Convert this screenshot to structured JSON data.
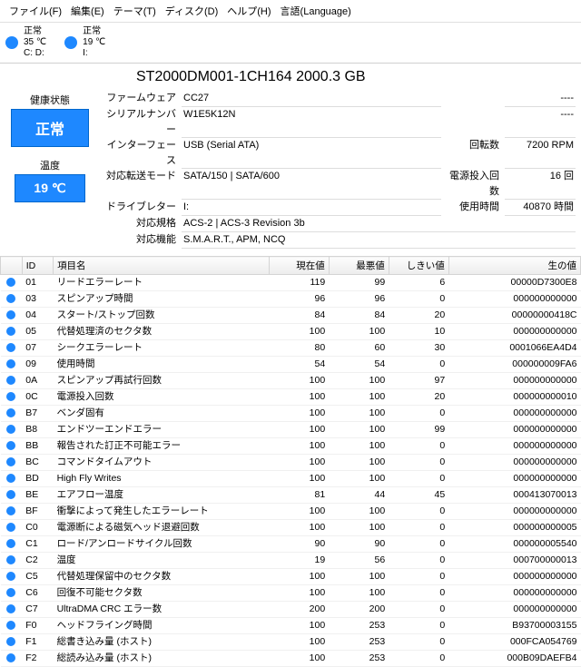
{
  "colors": {
    "accent": "#1e88ff",
    "border": "#d4d4d4",
    "grid": "#f0f0f0"
  },
  "menu": {
    "file": "ファイル(F)",
    "edit": "編集(E)",
    "theme": "テーマ(T)",
    "disk": "ディスク(D)",
    "help": "ヘルプ(H)",
    "lang": "言語(Language)"
  },
  "drives": [
    {
      "status": "正常",
      "temp": "35 ℃",
      "letter": "C: D:"
    },
    {
      "status": "正常",
      "temp": "19 ℃",
      "letter": "I:"
    }
  ],
  "model": "ST2000DM001-1CH164 2000.3 GB",
  "left": {
    "health_label": "健康状態",
    "health": "正常",
    "temp_label": "温度",
    "temp": "19 ℃"
  },
  "info": {
    "rows": [
      {
        "l1": "ファームウェア",
        "v1": "CC27",
        "l2": "",
        "v2": "----"
      },
      {
        "l1": "シリアルナンバー",
        "v1": "W1E5K12N",
        "l2": "",
        "v2": "----"
      },
      {
        "l1": "インターフェース",
        "v1": "USB (Serial ATA)",
        "l2": "回転数",
        "v2": "7200 RPM"
      },
      {
        "l1": "対応転送モード",
        "v1": "SATA/150 | SATA/600",
        "l2": "電源投入回数",
        "v2": "16 回"
      },
      {
        "l1": "ドライブレター",
        "v1": "I:",
        "l2": "使用時間",
        "v2": "40870 時間"
      },
      {
        "l1": "対応規格",
        "v1": "ACS-2 | ACS-3 Revision 3b",
        "l2": "",
        "v2": ""
      },
      {
        "l1": "対応機能",
        "v1": "S.M.A.R.T., APM, NCQ",
        "l2": "",
        "v2": ""
      }
    ]
  },
  "table": {
    "headers": {
      "id": "ID",
      "name": "項目名",
      "cur": "現在値",
      "worst": "最悪値",
      "thr": "しきい値",
      "raw": "生の値"
    },
    "rows": [
      {
        "id": "01",
        "name": "リードエラーレート",
        "cur": "119",
        "worst": "99",
        "thr": "6",
        "raw": "00000D7300E8"
      },
      {
        "id": "03",
        "name": "スピンアップ時間",
        "cur": "96",
        "worst": "96",
        "thr": "0",
        "raw": "000000000000"
      },
      {
        "id": "04",
        "name": "スタート/ストップ回数",
        "cur": "84",
        "worst": "84",
        "thr": "20",
        "raw": "00000000418C"
      },
      {
        "id": "05",
        "name": "代替処理済のセクタ数",
        "cur": "100",
        "worst": "100",
        "thr": "10",
        "raw": "000000000000"
      },
      {
        "id": "07",
        "name": "シークエラーレート",
        "cur": "80",
        "worst": "60",
        "thr": "30",
        "raw": "0001066EA4D4"
      },
      {
        "id": "09",
        "name": "使用時間",
        "cur": "54",
        "worst": "54",
        "thr": "0",
        "raw": "000000009FA6"
      },
      {
        "id": "0A",
        "name": "スピンアップ再試行回数",
        "cur": "100",
        "worst": "100",
        "thr": "97",
        "raw": "000000000000"
      },
      {
        "id": "0C",
        "name": "電源投入回数",
        "cur": "100",
        "worst": "100",
        "thr": "20",
        "raw": "000000000010"
      },
      {
        "id": "B7",
        "name": "ベンダ固有",
        "cur": "100",
        "worst": "100",
        "thr": "0",
        "raw": "000000000000"
      },
      {
        "id": "B8",
        "name": "エンドツーエンドエラー",
        "cur": "100",
        "worst": "100",
        "thr": "99",
        "raw": "000000000000"
      },
      {
        "id": "BB",
        "name": "報告された訂正不可能エラー",
        "cur": "100",
        "worst": "100",
        "thr": "0",
        "raw": "000000000000"
      },
      {
        "id": "BC",
        "name": "コマンドタイムアウト",
        "cur": "100",
        "worst": "100",
        "thr": "0",
        "raw": "000000000000"
      },
      {
        "id": "BD",
        "name": "High Fly Writes",
        "cur": "100",
        "worst": "100",
        "thr": "0",
        "raw": "000000000000"
      },
      {
        "id": "BE",
        "name": "エアフロー温度",
        "cur": "81",
        "worst": "44",
        "thr": "45",
        "raw": "000413070013"
      },
      {
        "id": "BF",
        "name": "衝撃によって発生したエラーレート",
        "cur": "100",
        "worst": "100",
        "thr": "0",
        "raw": "000000000000"
      },
      {
        "id": "C0",
        "name": "電源断による磁気ヘッド退避回数",
        "cur": "100",
        "worst": "100",
        "thr": "0",
        "raw": "000000000005"
      },
      {
        "id": "C1",
        "name": "ロード/アンロードサイクル回数",
        "cur": "90",
        "worst": "90",
        "thr": "0",
        "raw": "000000005540"
      },
      {
        "id": "C2",
        "name": "温度",
        "cur": "19",
        "worst": "56",
        "thr": "0",
        "raw": "000700000013"
      },
      {
        "id": "C5",
        "name": "代替処理保留中のセクタ数",
        "cur": "100",
        "worst": "100",
        "thr": "0",
        "raw": "000000000000"
      },
      {
        "id": "C6",
        "name": "回復不可能セクタ数",
        "cur": "100",
        "worst": "100",
        "thr": "0",
        "raw": "000000000000"
      },
      {
        "id": "C7",
        "name": "UltraDMA CRC エラー数",
        "cur": "200",
        "worst": "200",
        "thr": "0",
        "raw": "000000000000"
      },
      {
        "id": "F0",
        "name": "ヘッドフライング時間",
        "cur": "100",
        "worst": "253",
        "thr": "0",
        "raw": "B93700003155"
      },
      {
        "id": "F1",
        "name": "総書き込み量 (ホスト)",
        "cur": "100",
        "worst": "253",
        "thr": "0",
        "raw": "000FCA054769"
      },
      {
        "id": "F2",
        "name": "総読み込み量 (ホスト)",
        "cur": "100",
        "worst": "253",
        "thr": "0",
        "raw": "000B09DAEFB4"
      }
    ]
  }
}
